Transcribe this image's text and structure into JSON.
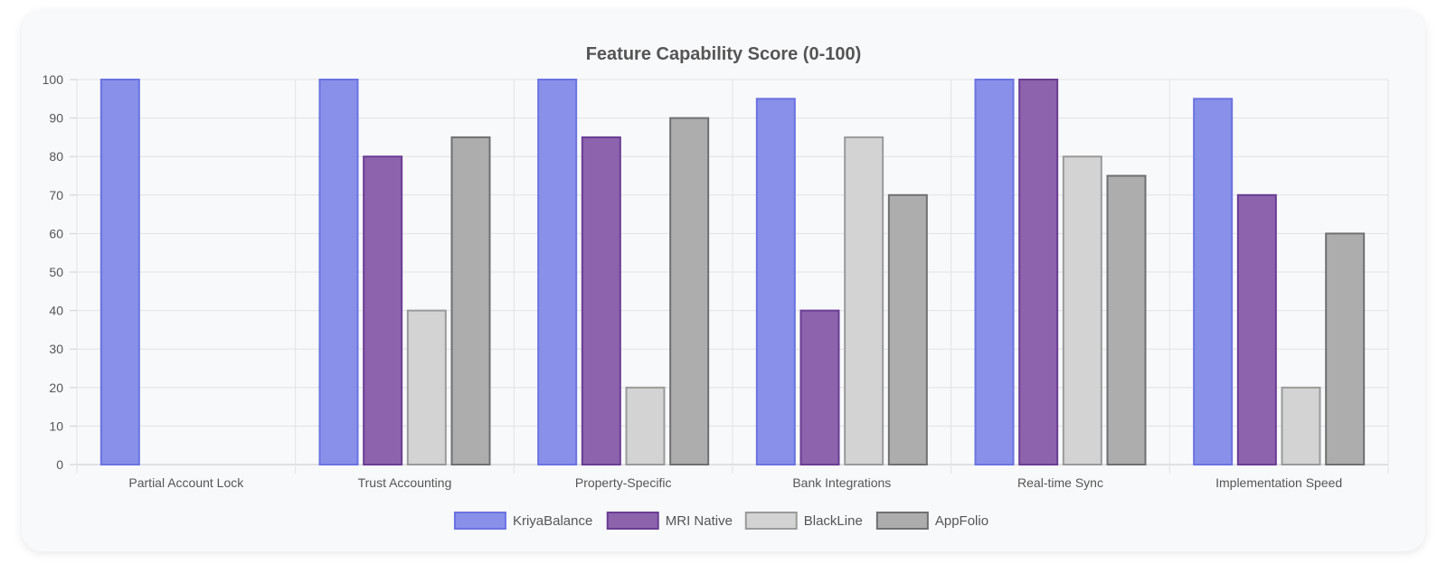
{
  "chart_data": {
    "type": "bar",
    "title": "Feature Capability Score (0-100)",
    "xlabel": "",
    "ylabel": "",
    "ylim": [
      0,
      100
    ],
    "yticks": [
      0,
      10,
      20,
      30,
      40,
      50,
      60,
      70,
      80,
      90,
      100
    ],
    "grid": true,
    "legend_position": "bottom",
    "categories": [
      "Partial Account Lock",
      "Trust Accounting",
      "Property-Specific",
      "Bank Integrations",
      "Real-time Sync",
      "Implementation Speed"
    ],
    "series": [
      {
        "name": "KriyaBalance",
        "values": [
          100,
          100,
          100,
          95,
          100,
          95
        ],
        "fill": "#8890ea",
        "stroke": "#6b73e0"
      },
      {
        "name": "MRI Native",
        "values": [
          0,
          80,
          85,
          40,
          100,
          70
        ],
        "fill": "#8c63ac",
        "stroke": "#6a3d93"
      },
      {
        "name": "BlackLine",
        "values": [
          0,
          40,
          20,
          85,
          80,
          20
        ],
        "fill": "#d3d3d3",
        "stroke": "#9a9a9a"
      },
      {
        "name": "AppFolio",
        "values": [
          0,
          85,
          90,
          70,
          75,
          60
        ],
        "fill": "#adadad",
        "stroke": "#707070"
      }
    ]
  }
}
